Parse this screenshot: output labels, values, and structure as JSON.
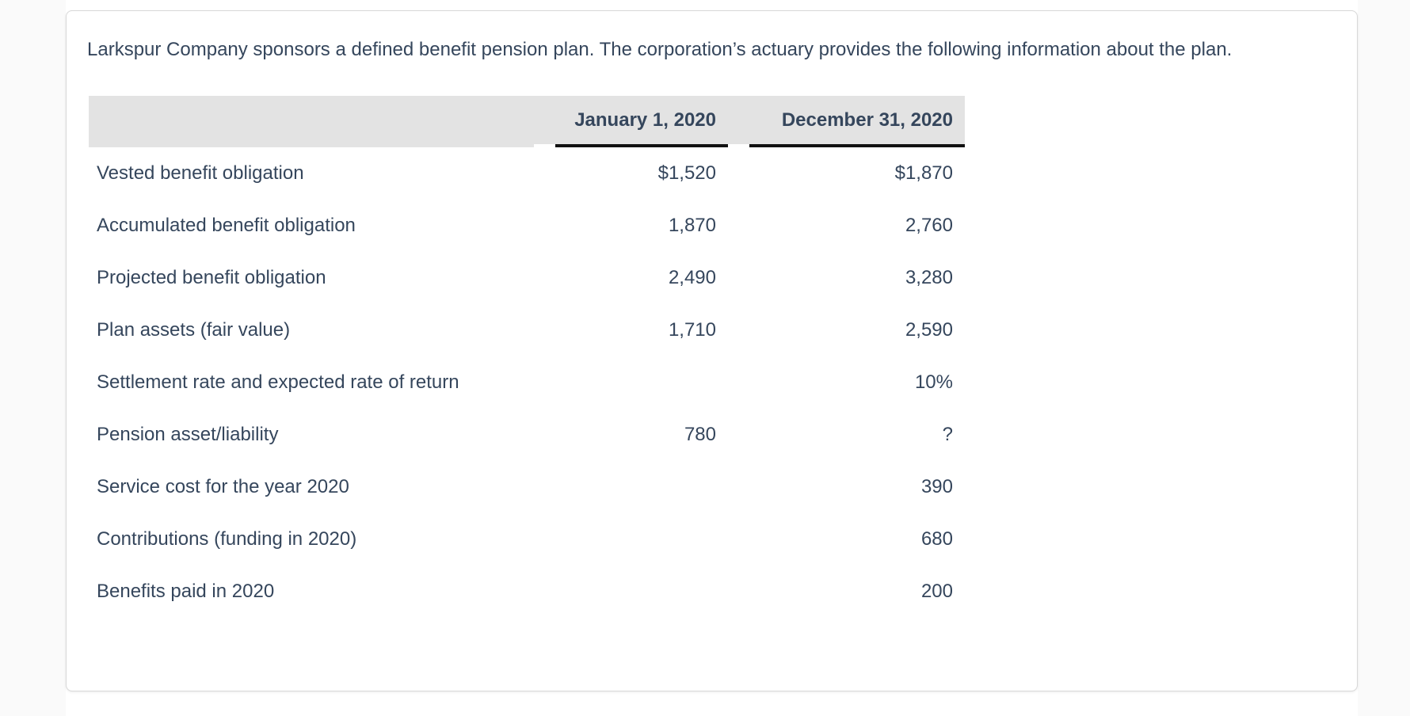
{
  "card": {
    "intro": "Larkspur Company sponsors a defined benefit pension plan. The corporation’s actuary provides the following information about the plan."
  },
  "table": {
    "header": {
      "label": "",
      "col1": "January 1, 2020",
      "col2": "December 31, 2020"
    },
    "rows": [
      {
        "label": "Vested benefit obligation",
        "jan1": "$1,520",
        "dec31": "$1,870"
      },
      {
        "label": "Accumulated benefit obligation",
        "jan1": "1,870",
        "dec31": "2,760"
      },
      {
        "label": "Projected benefit obligation",
        "jan1": "2,490",
        "dec31": "3,280"
      },
      {
        "label": "Plan assets (fair value)",
        "jan1": "1,710",
        "dec31": "2,590"
      },
      {
        "label": "Settlement rate and expected rate of return",
        "jan1": "",
        "dec31": "10%"
      },
      {
        "label": "Pension asset/liability",
        "jan1": "780",
        "dec31": "?"
      },
      {
        "label": "Service cost for the year 2020",
        "jan1": "",
        "dec31": "390"
      },
      {
        "label": "Contributions (funding in 2020)",
        "jan1": "",
        "dec31": "680"
      },
      {
        "label": "Benefits paid in 2020",
        "jan1": "",
        "dec31": "200"
      }
    ]
  },
  "colors": {
    "text": "#35465c",
    "header_bg": "#e3e3e3",
    "header_underline": "#111111",
    "card_border": "#d8d8d8",
    "page_side_bg": "#fafafa"
  }
}
